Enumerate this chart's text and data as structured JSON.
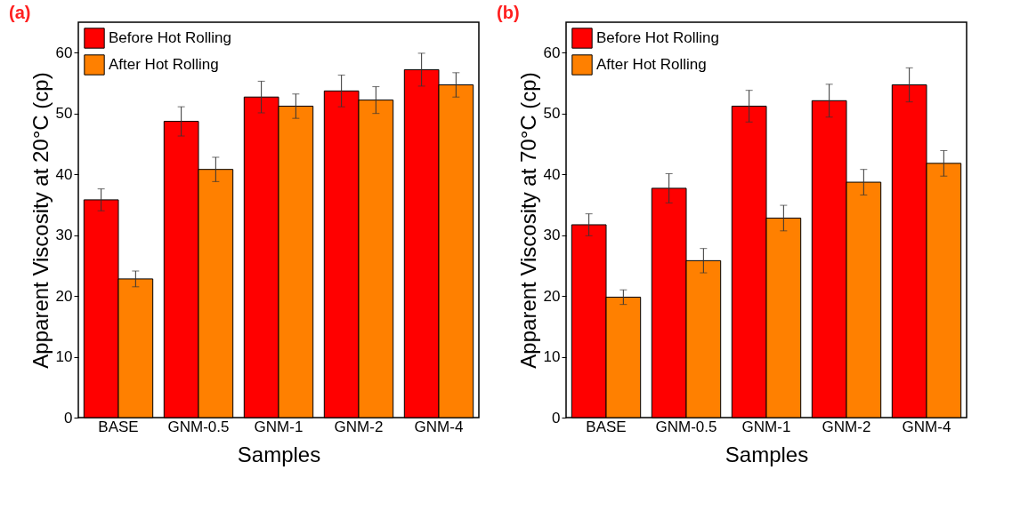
{
  "chart_data": [
    {
      "type": "bar",
      "title": "(a)",
      "xlabel": "Samples",
      "ylabel": "Apparent Viscosity at 20°C (cp)",
      "categories": [
        "BASE",
        "GNM-0.5",
        "GNM-1",
        "GNM-2",
        "GNM-4"
      ],
      "series": [
        {
          "name": "Before Hot Rolling",
          "color": "#ff0000",
          "values": [
            35.8,
            48.7,
            52.7,
            53.7,
            57.2
          ],
          "errors": [
            1.8,
            2.4,
            2.6,
            2.6,
            2.7
          ]
        },
        {
          "name": "After Hot Rolling",
          "color": "#ff8000",
          "values": [
            22.8,
            40.8,
            51.2,
            52.2,
            54.7
          ],
          "errors": [
            1.3,
            2.0,
            2.0,
            2.2,
            2.0
          ]
        }
      ],
      "ylim": [
        0,
        65
      ],
      "yticks": [
        0,
        10,
        20,
        30,
        40,
        50,
        60
      ],
      "grid": false,
      "legend": "top left"
    },
    {
      "type": "bar",
      "title": "(b)",
      "xlabel": "Samples",
      "ylabel": "Apparent Viscosity at 70°C (cp)",
      "categories": [
        "BASE",
        "GNM-0.5",
        "GNM-1",
        "GNM-2",
        "GNM-4"
      ],
      "series": [
        {
          "name": "Before Hot Rolling",
          "color": "#ff0000",
          "values": [
            31.7,
            37.7,
            51.2,
            52.1,
            54.7
          ],
          "errors": [
            1.8,
            2.4,
            2.6,
            2.7,
            2.8
          ]
        },
        {
          "name": "After Hot Rolling",
          "color": "#ff8000",
          "values": [
            19.8,
            25.8,
            32.8,
            38.7,
            41.8
          ],
          "errors": [
            1.2,
            2.0,
            2.1,
            2.1,
            2.1
          ]
        }
      ],
      "ylim": [
        0,
        65
      ],
      "yticks": [
        0,
        10,
        20,
        30,
        40,
        50,
        60
      ],
      "grid": false,
      "legend": "top left"
    }
  ]
}
